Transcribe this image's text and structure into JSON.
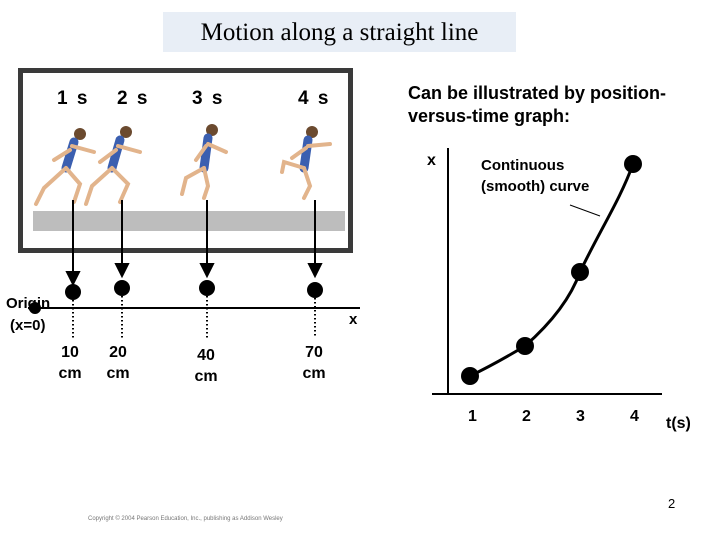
{
  "title": "Motion along a straight line",
  "photo": {
    "time_labels": [
      "1 s",
      "2 s",
      "3 s",
      "4 s"
    ]
  },
  "axis": {
    "origin_label_1": "Origin",
    "origin_label_2": "(x=0)",
    "x_label": "x",
    "positions": [
      {
        "line1": "10",
        "line2": "cm"
      },
      {
        "line1": "20",
        "line2": "cm"
      },
      {
        "line1": "40",
        "line2": "cm"
      },
      {
        "line1": "70",
        "line2": "cm"
      }
    ]
  },
  "description": "Can be illustrated by position-versus-time graph:",
  "graph": {
    "y_label": "x",
    "curve_label_1": "Continuous",
    "curve_label_2": "(smooth) curve",
    "t_ticks": [
      "1",
      "2",
      "3",
      "4"
    ],
    "t_label": "t(s)"
  },
  "page_number": "2",
  "copyright": "Copyright © 2004 Pearson Education, Inc., publishing as Addison Wesley",
  "colors": {
    "title_bg": "#e8eef6",
    "frame": "#3a3a3a",
    "shirt": "#3b5fb0"
  }
}
